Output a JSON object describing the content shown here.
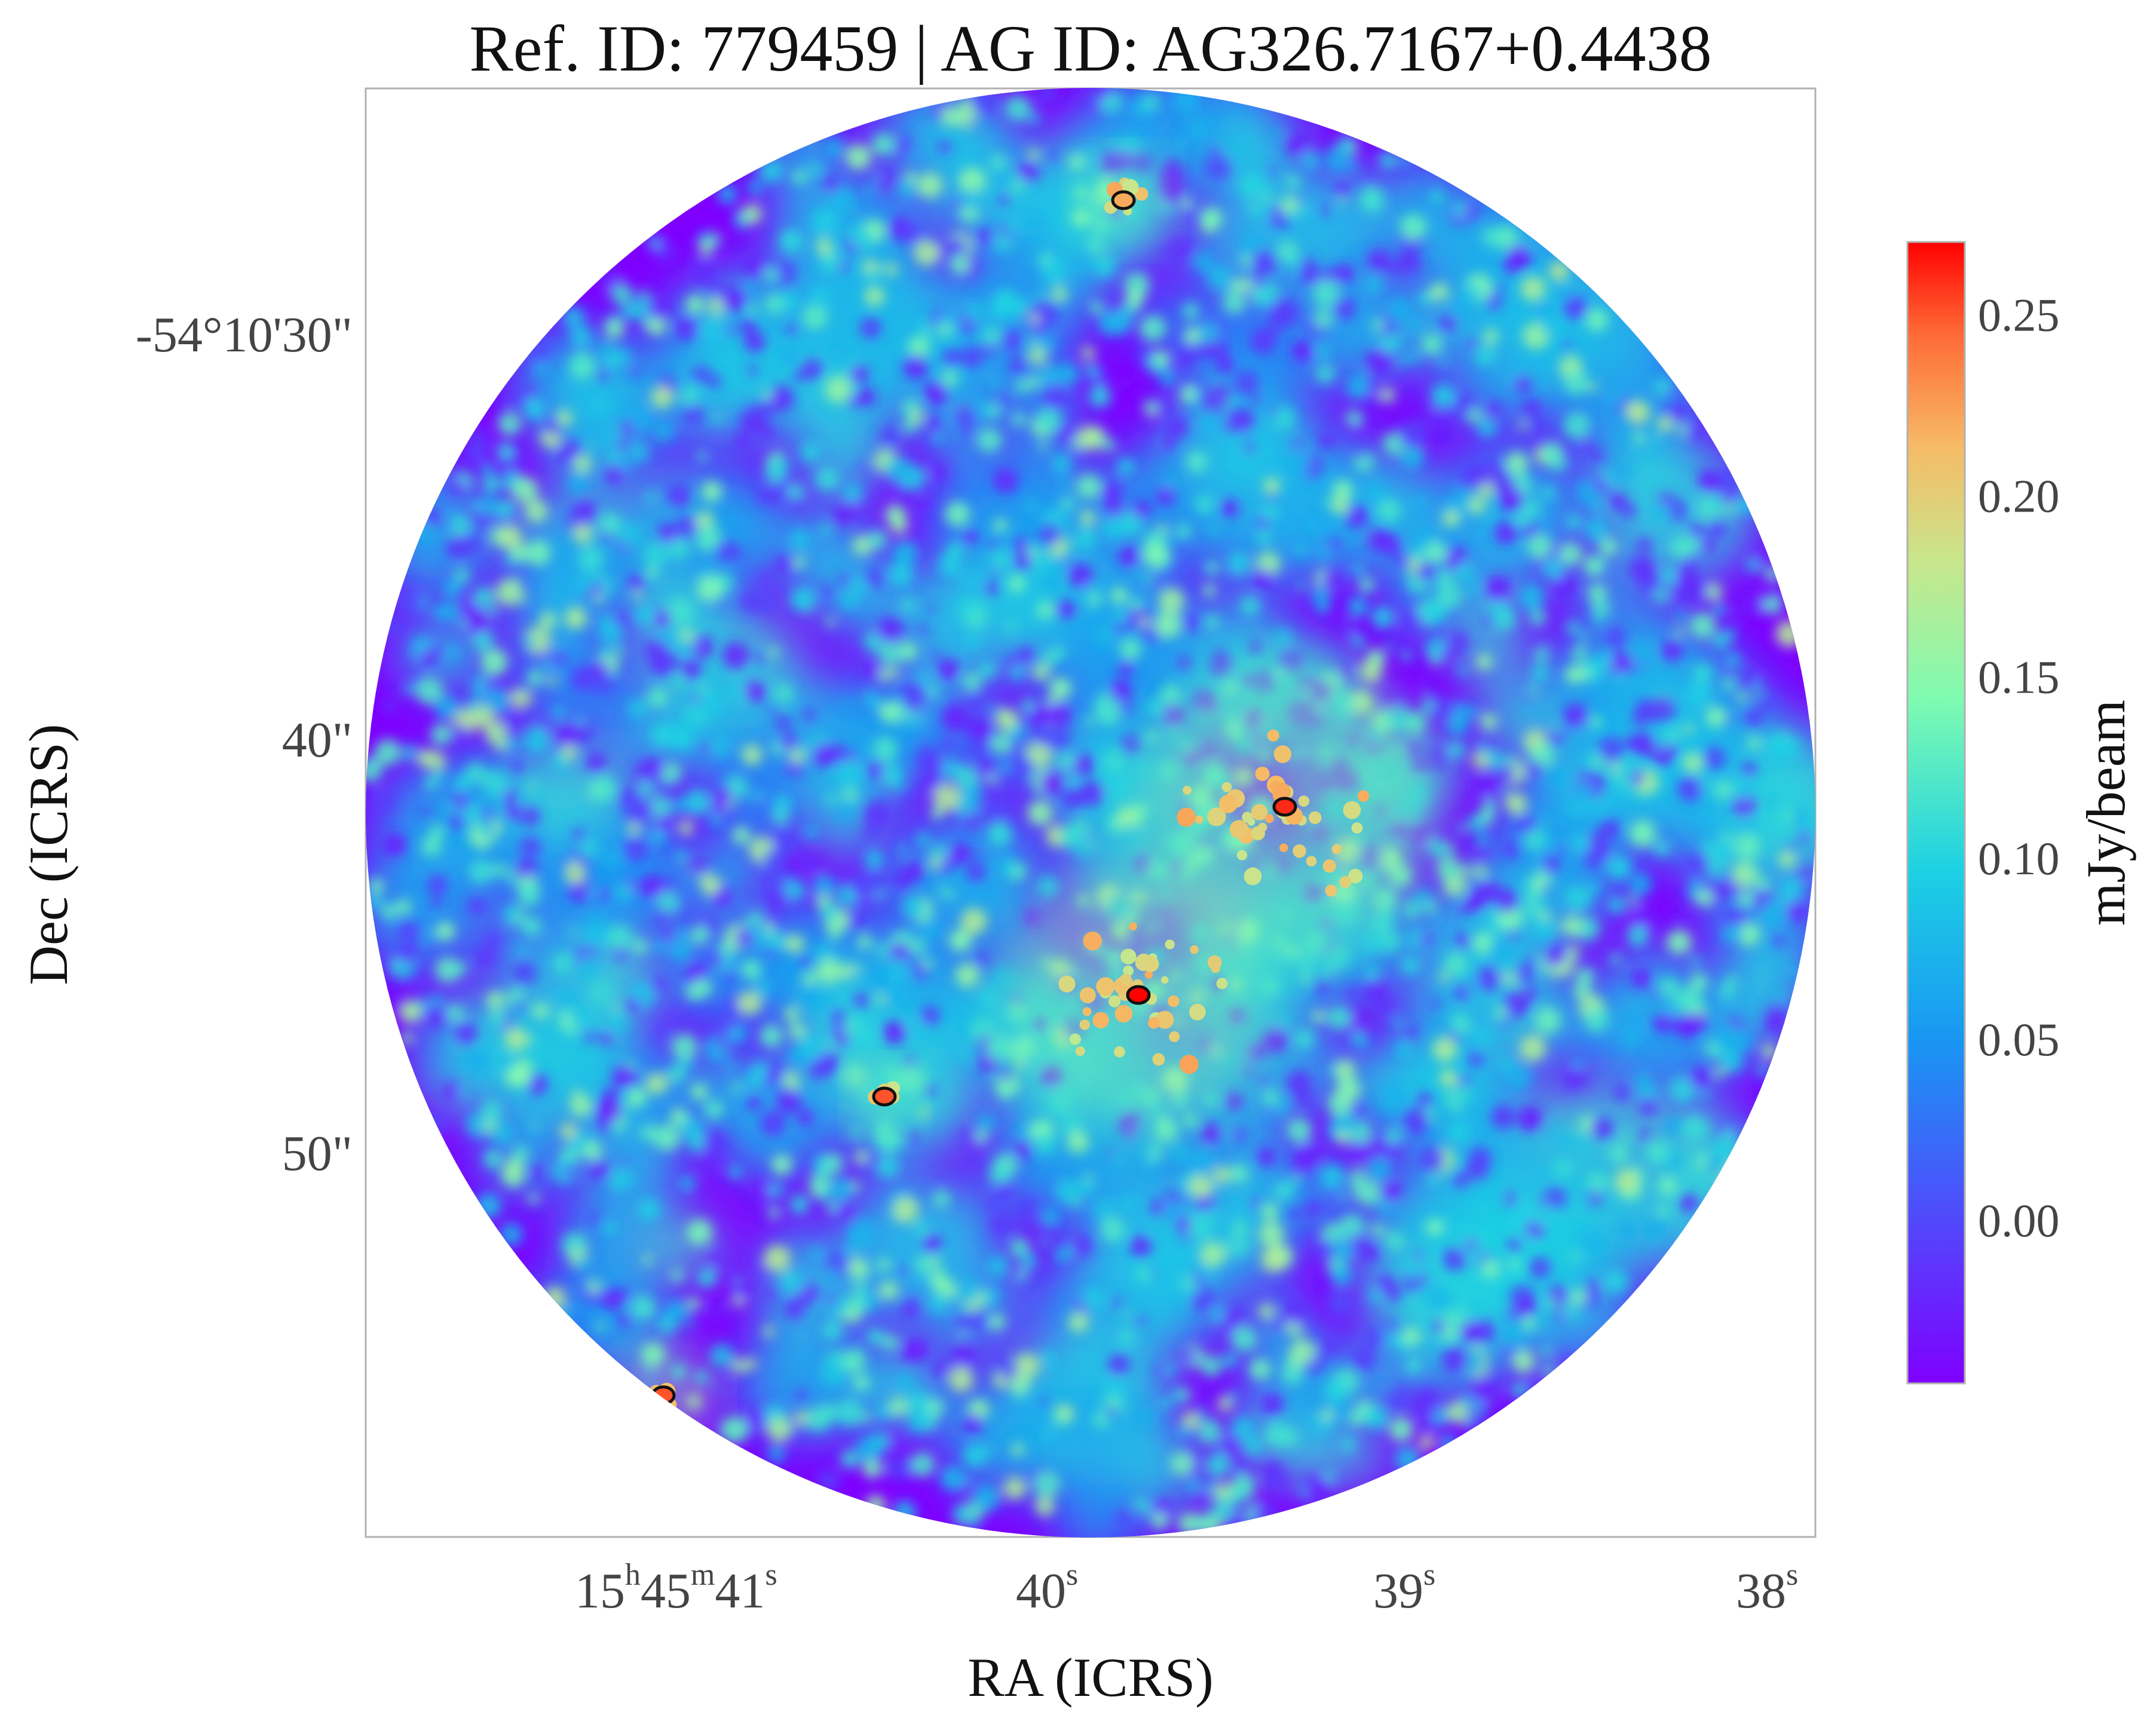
{
  "chart_data": {
    "type": "heatmap",
    "title": "Ref. ID: 779459 | AG ID: AG326.7167+0.4438",
    "xlabel": "RA (ICRS)",
    "ylabel": "Dec (ICRS)",
    "x_ticks": [
      {
        "base": "15",
        "parts": [
          {
            "text": "15",
            "sup": "h"
          },
          {
            "text": "45",
            "sup": "m"
          },
          {
            "text": "41",
            "sup": "s"
          }
        ]
      },
      {
        "parts": [
          {
            "text": "40",
            "sup": "s"
          }
        ]
      },
      {
        "parts": [
          {
            "text": "39",
            "sup": "s"
          }
        ]
      },
      {
        "parts": [
          {
            "text": "38",
            "sup": "s"
          }
        ]
      }
    ],
    "y_ticks": [
      "-54°10'30\"",
      "40\"",
      "50\""
    ],
    "colorbar": {
      "label": "mJy/beam",
      "colormap": "rainbow",
      "range": [
        -0.045,
        0.27
      ],
      "ticks": [
        "0.25",
        "0.20",
        "0.15",
        "0.10",
        "0.05",
        "0.00"
      ],
      "tick_values": [
        0.25,
        0.2,
        0.15,
        0.1,
        0.05,
        0.0
      ]
    },
    "field": {
      "shape": "circular primary beam footprint",
      "background_level": "below 0.00",
      "contours": "black contours on brightest compact emission"
    },
    "sources": [
      {
        "name": "central cluster",
        "peak": 0.27
      },
      {
        "name": "upper-right group",
        "peak": 0.26
      },
      {
        "name": "compact knot",
        "peak": 0.25
      },
      {
        "name": "lower-left edge knot",
        "peak": 0.25
      },
      {
        "name": "top bright spot",
        "peak": 0.22
      }
    ]
  }
}
